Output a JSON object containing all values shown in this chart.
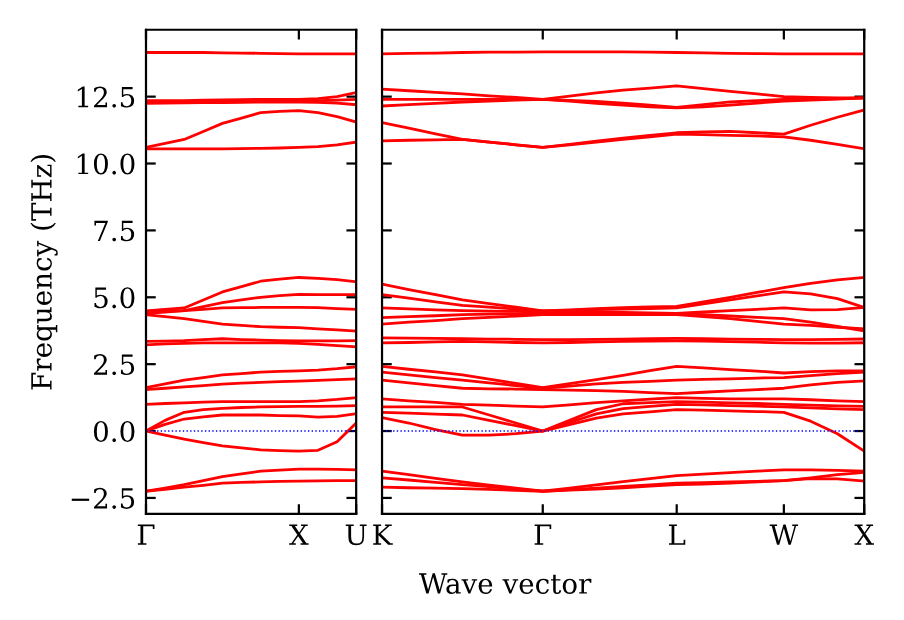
{
  "chart_data": [
    {
      "type": "line",
      "ylabel": "Frequency (THz)",
      "ylim": [
        -3.1,
        15
      ],
      "categories": [
        "Γ",
        null,
        null,
        null,
        null,
        null,
        null,
        null,
        "X",
        null,
        null,
        "U"
      ],
      "yticks": [
        {
          "value": -2.5,
          "label": "−2.5"
        },
        {
          "value": 0,
          "label": "0.0"
        },
        2.5,
        {
          "value": 5,
          "label": "5.0"
        },
        7.5,
        {
          "value": 10,
          "label": "10.0"
        },
        12.5
      ],
      "grid": false,
      "legend": false,
      "ref_lines": [
        {
          "axis": "y",
          "value": 0,
          "color": "#0000ff",
          "line_style": "dotted"
        }
      ],
      "series": [
        {
          "color": "#ff0000",
          "values": [
            14.15,
            14.15,
            14.15,
            14.15,
            14.14,
            14.13,
            14.12,
            14.11,
            14.1,
            14.1,
            14.1,
            14.1
          ]
        },
        {
          "color": "#ff0000",
          "values": [
            12.35,
            12.35,
            12.35,
            12.37,
            12.38,
            12.39,
            12.4,
            12.4,
            12.4,
            12.43,
            12.5,
            12.65
          ]
        },
        {
          "color": "#ff0000",
          "values": [
            12.3,
            12.3,
            12.3,
            12.3,
            12.3,
            12.31,
            12.32,
            12.33,
            12.35,
            12.35,
            12.37,
            12.4
          ]
        },
        {
          "color": "#ff0000",
          "values": [
            12.25,
            12.26,
            12.27,
            12.28,
            12.28,
            12.29,
            12.3,
            12.3,
            12.3,
            12.29,
            12.26,
            12.2
          ]
        },
        {
          "color": "#ff0000",
          "values": [
            10.6,
            10.75,
            10.9,
            11.2,
            11.5,
            11.7,
            11.9,
            11.95,
            11.98,
            11.9,
            11.75,
            11.55
          ]
        },
        {
          "color": "#ff0000",
          "values": [
            10.55,
            10.55,
            10.55,
            10.55,
            10.55,
            10.56,
            10.57,
            10.58,
            10.6,
            10.63,
            10.7,
            10.8
          ]
        },
        {
          "color": "#ff0000",
          "values": [
            4.49,
            4.55,
            4.6,
            4.9,
            5.2,
            5.4,
            5.6,
            5.68,
            5.74,
            5.71,
            5.66,
            5.58
          ]
        },
        {
          "color": "#ff0000",
          "values": [
            4.45,
            4.47,
            4.5,
            4.65,
            4.8,
            4.9,
            5.0,
            5.06,
            5.11,
            5.1,
            5.1,
            5.1
          ]
        },
        {
          "color": "#ff0000",
          "values": [
            4.4,
            4.45,
            4.5,
            4.55,
            4.6,
            4.61,
            4.62,
            4.62,
            4.62,
            4.61,
            4.58,
            4.55
          ]
        },
        {
          "color": "#ff0000",
          "values": [
            4.35,
            4.28,
            4.2,
            4.1,
            4.0,
            3.95,
            3.9,
            3.88,
            3.87,
            3.82,
            3.78,
            3.74
          ]
        },
        {
          "color": "#ff0000",
          "values": [
            3.35,
            3.36,
            3.38,
            3.42,
            3.45,
            3.42,
            3.4,
            3.38,
            3.37,
            3.37,
            3.37,
            3.38
          ]
        },
        {
          "color": "#ff0000",
          "values": [
            3.22,
            3.26,
            3.28,
            3.3,
            3.3,
            3.3,
            3.3,
            3.3,
            3.28,
            3.24,
            3.19,
            3.15
          ]
        },
        {
          "color": "#ff0000",
          "values": [
            1.62,
            1.76,
            1.9,
            2.0,
            2.1,
            2.15,
            2.2,
            2.23,
            2.25,
            2.28,
            2.33,
            2.4
          ]
        },
        {
          "color": "#ff0000",
          "values": [
            1.55,
            1.6,
            1.65,
            1.7,
            1.75,
            1.79,
            1.82,
            1.85,
            1.87,
            1.89,
            1.92,
            1.95
          ]
        },
        {
          "color": "#ff0000",
          "values": [
            1.0,
            1.03,
            1.05,
            1.08,
            1.1,
            1.1,
            1.1,
            1.1,
            1.1,
            1.13,
            1.18,
            1.25
          ]
        },
        {
          "color": "#ff0000",
          "values": [
            0.0,
            0.4,
            0.7,
            0.8,
            0.85,
            0.88,
            0.9,
            0.91,
            0.92,
            0.92,
            0.93,
            0.95
          ]
        },
        {
          "color": "#ff0000",
          "values": [
            0.0,
            0.25,
            0.45,
            0.53,
            0.6,
            0.6,
            0.6,
            0.58,
            0.57,
            0.52,
            0.55,
            0.65
          ]
        },
        {
          "color": "#ff0000",
          "values": [
            0.0,
            -0.15,
            -0.3,
            -0.43,
            -0.55,
            -0.63,
            -0.7,
            -0.73,
            -0.75,
            -0.72,
            -0.4,
            0.3
          ]
        },
        {
          "color": "#ff0000",
          "values": [
            -2.25,
            -2.13,
            -2.0,
            -1.85,
            -1.7,
            -1.6,
            -1.5,
            -1.46,
            -1.42,
            -1.42,
            -1.43,
            -1.45
          ]
        },
        {
          "color": "#ff0000",
          "values": [
            -2.25,
            -2.18,
            -2.1,
            -2.03,
            -1.95,
            -1.92,
            -1.9,
            -1.88,
            -1.87,
            -1.86,
            -1.85,
            -1.85
          ]
        }
      ]
    },
    {
      "type": "line",
      "xlabel": "Wave vector",
      "ylim": [
        -3.1,
        15
      ],
      "tick_labels": "x",
      "categories": [
        "K",
        null,
        null,
        null,
        null,
        null,
        "Γ",
        null,
        null,
        null,
        null,
        "L",
        null,
        null,
        null,
        "W",
        null,
        null,
        "X"
      ],
      "yticks": [
        -2.5,
        0,
        2.5,
        5,
        7.5,
        10,
        12.5
      ],
      "grid": false,
      "legend": false,
      "ref_lines": [
        {
          "axis": "y",
          "value": 0,
          "color": "#0000ff",
          "line_style": "dotted"
        }
      ],
      "series": [
        {
          "color": "#ff0000",
          "values": [
            14.1,
            14.12,
            14.13,
            14.15,
            14.16,
            14.16,
            14.17,
            14.17,
            14.17,
            14.17,
            14.16,
            14.15,
            14.14,
            14.12,
            14.11,
            14.1,
            14.1,
            14.1,
            14.1
          ]
        },
        {
          "color": "#ff0000",
          "values": [
            12.78,
            12.72,
            12.66,
            12.6,
            12.53,
            12.47,
            12.4,
            12.52,
            12.64,
            12.74,
            12.82,
            12.9,
            12.8,
            12.7,
            12.6,
            12.5,
            12.47,
            12.45,
            12.45
          ]
        },
        {
          "color": "#ff0000",
          "values": [
            12.4,
            12.4,
            12.4,
            12.4,
            12.4,
            12.4,
            12.4,
            12.36,
            12.32,
            12.26,
            12.18,
            12.1,
            12.2,
            12.3,
            12.35,
            12.4,
            12.41,
            12.43,
            12.45
          ]
        },
        {
          "color": "#ff0000",
          "values": [
            12.15,
            12.2,
            12.25,
            12.3,
            12.33,
            12.37,
            12.4,
            12.33,
            12.25,
            12.18,
            12.12,
            12.08,
            12.12,
            12.18,
            12.26,
            12.33,
            12.37,
            12.41,
            12.45
          ]
        },
        {
          "color": "#ff0000",
          "values": [
            11.53,
            11.32,
            11.11,
            10.9,
            10.8,
            10.7,
            10.6,
            10.72,
            10.84,
            10.95,
            11.05,
            11.15,
            11.18,
            11.2,
            11.15,
            11.1,
            11.43,
            11.73,
            12.0
          ]
        },
        {
          "color": "#ff0000",
          "values": [
            10.85,
            10.87,
            10.88,
            10.9,
            10.8,
            10.7,
            10.6,
            10.7,
            10.8,
            10.9,
            11.0,
            11.1,
            11.08,
            11.05,
            11.03,
            11.0,
            10.87,
            10.72,
            10.55
          ]
        },
        {
          "color": "#ff0000",
          "values": [
            5.49,
            5.29,
            5.1,
            4.9,
            4.76,
            4.63,
            4.49,
            4.53,
            4.58,
            4.61,
            4.64,
            4.66,
            4.83,
            5.0,
            5.18,
            5.36,
            5.52,
            5.65,
            5.74
          ]
        },
        {
          "color": "#ff0000",
          "values": [
            5.1,
            4.97,
            4.83,
            4.7,
            4.63,
            4.56,
            4.49,
            4.51,
            4.54,
            4.56,
            4.58,
            4.6,
            4.75,
            4.9,
            5.05,
            5.2,
            5.13,
            4.95,
            4.62
          ]
        },
        {
          "color": "#ff0000",
          "values": [
            4.6,
            4.57,
            4.53,
            4.5,
            4.48,
            4.47,
            4.45,
            4.45,
            4.45,
            4.44,
            4.42,
            4.4,
            4.45,
            4.5,
            4.55,
            4.6,
            4.53,
            4.54,
            4.62
          ]
        },
        {
          "color": "#ff0000",
          "values": [
            4.24,
            4.28,
            4.31,
            4.35,
            4.37,
            4.38,
            4.4,
            4.4,
            4.4,
            4.4,
            4.4,
            4.4,
            4.35,
            4.3,
            4.25,
            4.2,
            4.07,
            3.91,
            3.74
          ]
        },
        {
          "color": "#ff0000",
          "values": [
            4.0,
            4.07,
            4.13,
            4.2,
            4.25,
            4.3,
            4.35,
            4.35,
            4.35,
            4.35,
            4.35,
            4.35,
            4.28,
            4.2,
            4.1,
            4.0,
            3.95,
            3.88,
            3.82
          ]
        },
        {
          "color": "#ff0000",
          "values": [
            3.48,
            3.47,
            3.46,
            3.45,
            3.44,
            3.43,
            3.42,
            3.42,
            3.43,
            3.44,
            3.45,
            3.46,
            3.45,
            3.44,
            3.43,
            3.42,
            3.42,
            3.43,
            3.44
          ]
        },
        {
          "color": "#ff0000",
          "values": [
            3.3,
            3.31,
            3.33,
            3.35,
            3.33,
            3.31,
            3.3,
            3.31,
            3.33,
            3.35,
            3.36,
            3.37,
            3.36,
            3.34,
            3.32,
            3.3,
            3.29,
            3.29,
            3.3
          ]
        },
        {
          "color": "#ff0000",
          "values": [
            2.42,
            2.31,
            2.21,
            2.1,
            1.94,
            1.78,
            1.62,
            1.77,
            1.92,
            2.08,
            2.26,
            2.42,
            2.36,
            2.3,
            2.24,
            2.17,
            2.22,
            2.25,
            2.25
          ]
        },
        {
          "color": "#ff0000",
          "values": [
            2.2,
            2.1,
            2.0,
            1.9,
            1.8,
            1.7,
            1.6,
            1.68,
            1.76,
            1.82,
            1.86,
            1.9,
            1.93,
            1.95,
            1.98,
            2.0,
            2.07,
            2.15,
            2.2
          ]
        },
        {
          "color": "#ff0000",
          "values": [
            1.9,
            1.8,
            1.7,
            1.6,
            1.58,
            1.57,
            1.55,
            1.53,
            1.51,
            1.48,
            1.44,
            1.4,
            1.45,
            1.5,
            1.55,
            1.6,
            1.73,
            1.82,
            1.87
          ]
        },
        {
          "color": "#ff0000",
          "values": [
            1.2,
            1.13,
            1.07,
            1.0,
            0.97,
            0.93,
            0.9,
            0.98,
            1.06,
            1.13,
            1.19,
            1.25,
            1.22,
            1.2,
            1.2,
            1.2,
            1.17,
            1.13,
            1.1
          ]
        },
        {
          "color": "#ff0000",
          "values": [
            0.9,
            0.9,
            0.9,
            0.9,
            0.6,
            0.3,
            0.0,
            0.4,
            0.8,
            1.02,
            1.06,
            1.1,
            1.08,
            1.05,
            1.03,
            1.0,
            0.97,
            0.94,
            0.92
          ]
        },
        {
          "color": "#ff0000",
          "values": [
            0.7,
            0.67,
            0.63,
            0.6,
            0.4,
            0.2,
            0.0,
            0.32,
            0.64,
            0.84,
            0.92,
            1.0,
            0.98,
            0.95,
            0.93,
            0.9,
            0.87,
            0.83,
            0.8
          ]
        },
        {
          "color": "#ff0000",
          "values": [
            0.5,
            0.3,
            0.05,
            -0.15,
            -0.15,
            -0.1,
            0.0,
            0.24,
            0.48,
            0.64,
            0.72,
            0.8,
            0.78,
            0.75,
            0.73,
            0.7,
            0.37,
            -0.1,
            -0.75
          ]
        },
        {
          "color": "#ff0000",
          "values": [
            -1.5,
            -1.63,
            -1.77,
            -1.9,
            -2.02,
            -2.13,
            -2.25,
            -2.13,
            -2.01,
            -1.89,
            -1.78,
            -1.67,
            -1.61,
            -1.55,
            -1.5,
            -1.45,
            -1.45,
            -1.47,
            -1.5
          ]
        },
        {
          "color": "#ff0000",
          "values": [
            -1.75,
            -1.83,
            -1.92,
            -2.0,
            -2.08,
            -2.17,
            -2.25,
            -2.19,
            -2.13,
            -2.07,
            -2.01,
            -1.95,
            -1.93,
            -1.9,
            -1.88,
            -1.85,
            -1.75,
            -1.63,
            -1.55
          ]
        },
        {
          "color": "#ff0000",
          "values": [
            -2.1,
            -2.12,
            -2.13,
            -2.15,
            -2.18,
            -2.22,
            -2.25,
            -2.21,
            -2.17,
            -2.12,
            -2.06,
            -2.0,
            -1.98,
            -1.95,
            -1.9,
            -1.85,
            -1.78,
            -1.79,
            -1.87
          ]
        }
      ]
    }
  ]
}
